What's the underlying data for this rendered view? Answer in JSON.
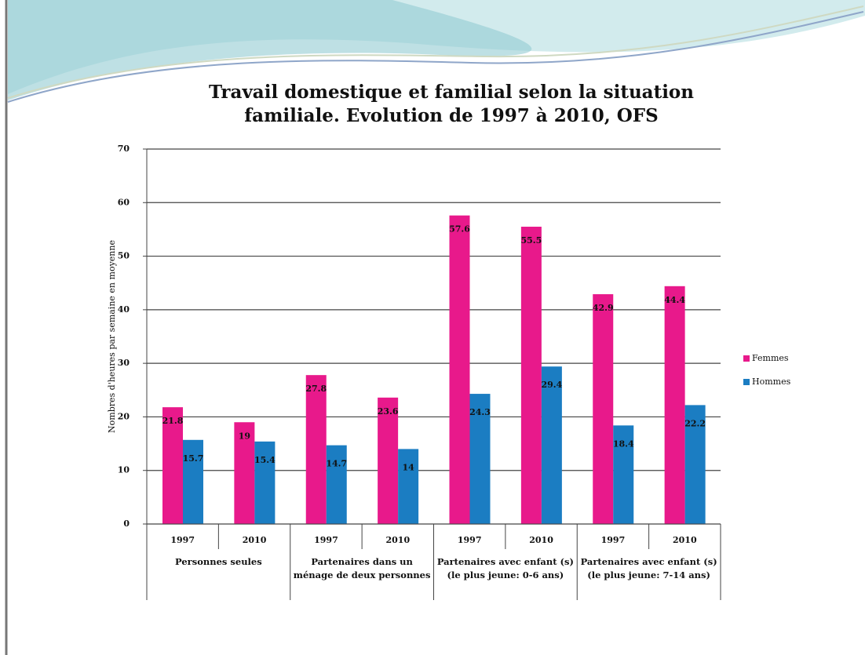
{
  "chart_data": {
    "type": "bar",
    "title": "Travail domestique et familial selon la situation familiale. Evolution de 1997 à 2010, OFS",
    "y_label": "Nombres d'heures par semaine en moyenne",
    "categories": [
      "1997",
      "2010",
      "1997",
      "2010",
      "1997",
      "2010",
      "1997",
      "2010"
    ],
    "groups": [
      "Personnes seules",
      "Partenaires dans un ménage de deux personnes",
      "Partenaires avec enfant (s) (le plus jeune: 0-6 ans)",
      "Partenaires avec enfant (s) (le plus jeune: 7-14 ans)"
    ],
    "series": [
      {
        "name": "Femmes",
        "color": "#e8198b",
        "values": [
          21.8,
          19,
          27.8,
          23.6,
          57.6,
          55.5,
          42.9,
          44.4
        ]
      },
      {
        "name": "Hommes",
        "color": "#1b7dc2",
        "values": [
          15.7,
          15.4,
          14.7,
          14,
          24.3,
          29.4,
          18.4,
          22.2
        ]
      }
    ],
    "ylim": [
      0,
      70
    ],
    "yticks": [
      0,
      10,
      20,
      30,
      40,
      50,
      60,
      70
    ],
    "grid": true,
    "legend": "right"
  }
}
